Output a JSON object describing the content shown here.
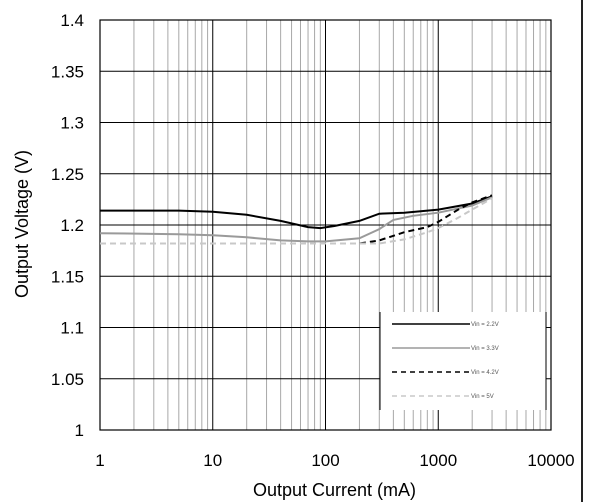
{
  "chart_data": {
    "type": "line",
    "title": "",
    "xlabel": "Output Current (mA)",
    "ylabel": "Output Voltage (V)",
    "x_scale": "log",
    "xlim": [
      1,
      10000
    ],
    "ylim": [
      1,
      1.4
    ],
    "x_ticks": [
      "1",
      "10",
      "100",
      "1000",
      "10000"
    ],
    "y_ticks": [
      "1",
      "1.05",
      "1.1",
      "1.15",
      "1.2",
      "1.25",
      "1.3",
      "1.35",
      "1.4"
    ],
    "grid": true,
    "legend_position": "bottom-right",
    "series": [
      {
        "name": "Vin = 2.2V",
        "color": "#000000",
        "style": "solid",
        "x": [
          1,
          5,
          10,
          20,
          40,
          70,
          90,
          120,
          200,
          300,
          500,
          1000,
          2000,
          3000
        ],
        "y": [
          1.214,
          1.214,
          1.213,
          1.21,
          1.204,
          1.198,
          1.197,
          1.199,
          1.204,
          1.211,
          1.212,
          1.215,
          1.221,
          1.228
        ]
      },
      {
        "name": "Vin = 3.3V",
        "color": "#9a9a9a",
        "style": "solid",
        "x": [
          1,
          5,
          10,
          20,
          40,
          70,
          100,
          200,
          300,
          400,
          600,
          1000,
          2000,
          3000
        ],
        "y": [
          1.192,
          1.191,
          1.19,
          1.188,
          1.185,
          1.184,
          1.184,
          1.187,
          1.196,
          1.205,
          1.209,
          1.212,
          1.219,
          1.227
        ]
      },
      {
        "name": "Vin = 4.2V",
        "color": "#000000",
        "style": "dashed",
        "x": [
          1,
          5,
          10,
          20,
          40,
          70,
          100,
          150,
          200,
          300,
          500,
          800,
          1000,
          1500,
          2000,
          3000
        ],
        "y": [
          1.182,
          1.182,
          1.182,
          1.182,
          1.182,
          1.182,
          1.182,
          1.182,
          1.182,
          1.185,
          1.193,
          1.198,
          1.203,
          1.215,
          1.222,
          1.229
        ]
      },
      {
        "name": "Vin = 5V",
        "color": "#c8c8c8",
        "style": "dashed",
        "x": [
          1,
          5,
          10,
          20,
          40,
          70,
          100,
          200,
          300,
          500,
          800,
          1000,
          1500,
          2000,
          3000
        ],
        "y": [
          1.182,
          1.182,
          1.182,
          1.182,
          1.182,
          1.182,
          1.182,
          1.182,
          1.182,
          1.186,
          1.193,
          1.197,
          1.207,
          1.215,
          1.226
        ]
      }
    ]
  }
}
